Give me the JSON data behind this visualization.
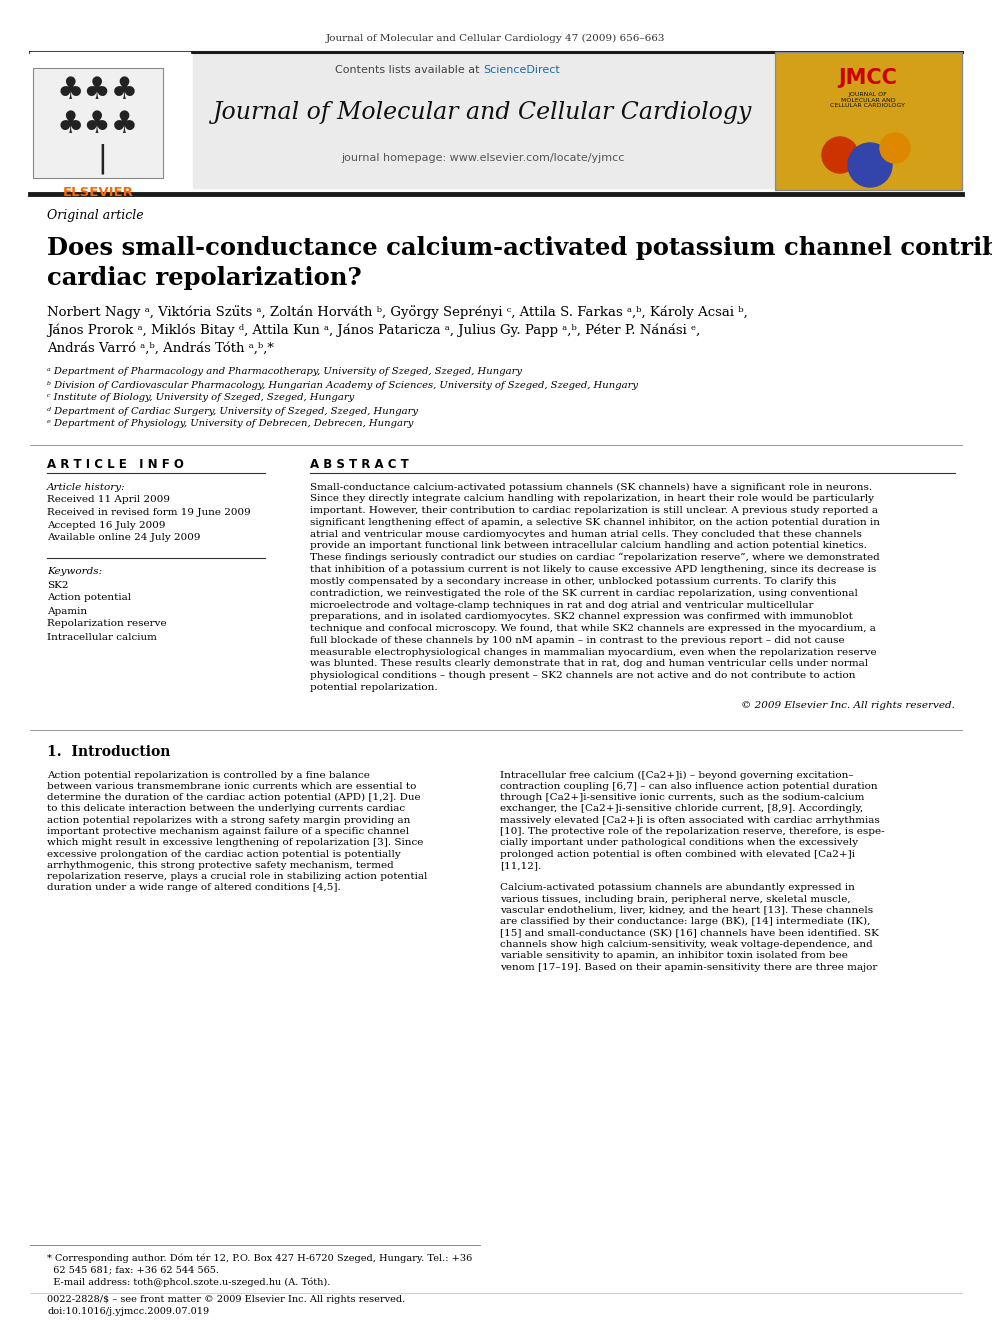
{
  "page_title": "Journal of Molecular and Cellular Cardiology 47 (2009) 656–663",
  "journal_name": "Journal of Molecular and Cellular Cardiology",
  "journal_homepage": "journal homepage: www.elsevier.com/locate/yjmcc",
  "contents_line": "Contents lists available at ScienceDirect",
  "section_label": "Original article",
  "article_title_line1": "Does small-conductance calcium-activated potassium channel contribute to",
  "article_title_line2": "cardiac repolarization?",
  "authors1": "Norbert Nagy ᵃ, Viktória Szüts ᵃ, Zoltán Horváth ᵇ, György Seprényi ᶜ, Attila S. Farkas ᵃ,ᵇ, Károly Acsai ᵇ,",
  "authors2": "János Prorok ᵃ, Miklós Bitay ᵈ, Attila Kun ᵃ, János Pataricza ᵃ, Julius Gy. Papp ᵃ,ᵇ, Péter P. Nánási ᵉ,",
  "authors3": "András Varró ᵃ,ᵇ, András Tóth ᵃ,ᵇ,*",
  "affil_a": "ᵃ Department of Pharmacology and Pharmacotherapy, University of Szeged, Szeged, Hungary",
  "affil_b": "ᵇ Division of Cardiovascular Pharmacology, Hungarian Academy of Sciences, University of Szeged, Szeged, Hungary",
  "affil_c": "ᶜ Institute of Biology, University of Szeged, Szeged, Hungary",
  "affil_d": "ᵈ Department of Cardiac Surgery, University of Szeged, Szeged, Hungary",
  "affil_e": "ᵉ Department of Physiology, University of Debrecen, Debrecen, Hungary",
  "article_info_header": "A R T I C L E   I N F O",
  "abstract_header": "A B S T R A C T",
  "article_history_label": "Article history:",
  "received1": "Received 11 April 2009",
  "received2": "Received in revised form 19 June 2009",
  "accepted": "Accepted 16 July 2009",
  "available": "Available online 24 July 2009",
  "keywords_label": "Keywords:",
  "keywords": [
    "SK2",
    "Action potential",
    "Apamin",
    "Repolarization reserve",
    "Intracellular calcium"
  ],
  "abstract_lines": [
    "Small-conductance calcium-activated potassium channels (SK channels) have a significant role in neurons.",
    "Since they directly integrate calcium handling with repolarization, in heart their role would be particularly",
    "important. However, their contribution to cardiac repolarization is still unclear. A previous study reported a",
    "significant lengthening effect of apamin, a selective SK channel inhibitor, on the action potential duration in",
    "atrial and ventricular mouse cardiomyocytes and human atrial cells. They concluded that these channels",
    "provide an important functional link between intracellular calcium handling and action potential kinetics.",
    "These findings seriously contradict our studies on cardiac “repolarization reserve”, where we demonstrated",
    "that inhibition of a potassium current is not likely to cause excessive APD lengthening, since its decrease is",
    "mostly compensated by a secondary increase in other, unblocked potassium currents. To clarify this",
    "contradiction, we reinvestigated the role of the SK current in cardiac repolarization, using conventional",
    "microelectrode and voltage-clamp techniques in rat and dog atrial and ventricular multicellular",
    "preparations, and in isolated cardiomyocytes. SK2 channel expression was confirmed with immunoblot",
    "technique and confocal microscopy. We found, that while SK2 channels are expressed in the myocardium, a",
    "full blockade of these channels by 100 nM apamin – in contrast to the previous report – did not cause",
    "measurable electrophysiological changes in mammalian myocardium, even when the repolarization reserve",
    "was blunted. These results clearly demonstrate that in rat, dog and human ventricular cells under normal",
    "physiological conditions – though present – SK2 channels are not active and do not contribute to action",
    "potential repolarization."
  ],
  "copyright": "© 2009 Elsevier Inc. All rights reserved.",
  "intro_header": "1.  Introduction",
  "intro_col1_lines": [
    "Action potential repolarization is controlled by a fine balance",
    "between various transmembrane ionic currents which are essential to",
    "determine the duration of the cardiac action potential (APD) [1,2]. Due",
    "to this delicate interaction between the underlying currents cardiac",
    "action potential repolarizes with a strong safety margin providing an",
    "important protective mechanism against failure of a specific channel",
    "which might result in excessive lengthening of repolarization [3]. Since",
    "excessive prolongation of the cardiac action potential is potentially",
    "arrhythmogenic, this strong protective safety mechanism, termed",
    "repolarization reserve, plays a crucial role in stabilizing action potential",
    "duration under a wide range of altered conditions [4,5]."
  ],
  "intro_col2_lines": [
    "Intracellular free calcium ([Ca2+]i) – beyond governing excitation–",
    "contraction coupling [6,7] – can also influence action potential duration",
    "through [Ca2+]i-sensitive ionic currents, such as the sodium-calcium",
    "exchanger, the [Ca2+]i-sensitive chloride current, [8,9]. Accordingly,",
    "massively elevated [Ca2+]i is often associated with cardiac arrhythmias",
    "[10]. The protective role of the repolarization reserve, therefore, is espe-",
    "cially important under pathological conditions when the excessively",
    "prolonged action potential is often combined with elevated [Ca2+]i",
    "[11,12].",
    "",
    "Calcium-activated potassium channels are abundantly expressed in",
    "various tissues, including brain, peripheral nerve, skeletal muscle,",
    "vascular endothelium, liver, kidney, and the heart [13]. These channels",
    "are classified by their conductance: large (BK), [14] intermediate (IK),",
    "[15] and small-conductance (SK) [16] channels have been identified. SK",
    "channels show high calcium-sensitivity, weak voltage-dependence, and",
    "variable sensitivity to apamin, an inhibitor toxin isolated from bee",
    "venom [17–19]. Based on their apamin-sensitivity there are three major"
  ],
  "footer_lines": [
    "* Corresponding author. Dóm tér 12, P.O. Box 427 H-6720 Szeged, Hungary. Tel.: +36",
    "  62 545 681; fax: +36 62 544 565.",
    "  E-mail address: toth@phcol.szote.u-szeged.hu (A. Tóth)."
  ],
  "footer_bottom_lines": [
    "0022-2828/$ – see front matter © 2009 Elsevier Inc. All rights reserved.",
    "doi:10.1016/j.yjmcc.2009.07.019"
  ],
  "background_color": "#ffffff",
  "header_bg": "#e8e8e8",
  "elsevier_orange": "#ff6600",
  "sciencedirect_blue": "#1a6ca8"
}
